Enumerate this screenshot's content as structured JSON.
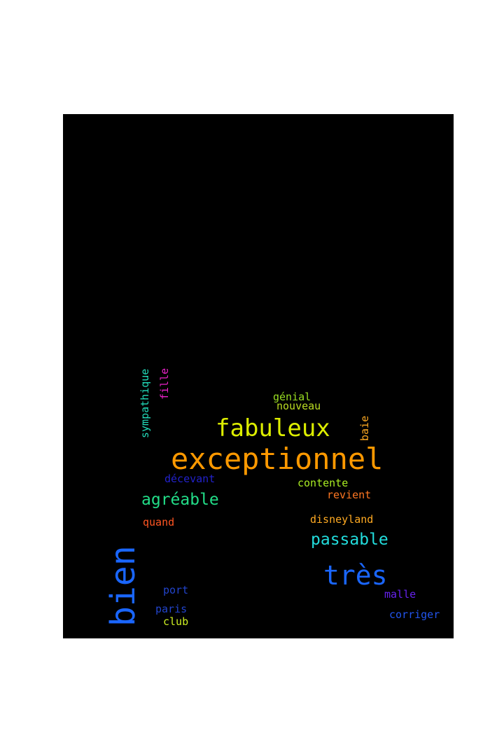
{
  "word_cloud": {
    "background_color": "#000000",
    "words": [
      {
        "text": "exceptionnel",
        "color": "#ff9900",
        "orientation": "horizontal"
      },
      {
        "text": "fabuleux",
        "color": "#ddee00",
        "orientation": "horizontal"
      },
      {
        "text": "bien",
        "color": "#1a66ff",
        "orientation": "vertical"
      },
      {
        "text": "très",
        "color": "#1a66ff",
        "orientation": "horizontal"
      },
      {
        "text": "agréable",
        "color": "#22dd88",
        "orientation": "horizontal"
      },
      {
        "text": "passable",
        "color": "#22dddd",
        "orientation": "horizontal"
      },
      {
        "text": "sympathique",
        "color": "#22ddbb",
        "orientation": "vertical"
      },
      {
        "text": "fille",
        "color": "#ee22cc",
        "orientation": "vertical"
      },
      {
        "text": "génial",
        "color": "#99dd22",
        "orientation": "horizontal"
      },
      {
        "text": "nouveau",
        "color": "#bbdd22",
        "orientation": "horizontal"
      },
      {
        "text": "baie",
        "color": "#ffaa22",
        "orientation": "vertical"
      },
      {
        "text": "décevant",
        "color": "#2222cc",
        "orientation": "horizontal"
      },
      {
        "text": "contente",
        "color": "#aaee22",
        "orientation": "horizontal"
      },
      {
        "text": "revient",
        "color": "#ff7722",
        "orientation": "horizontal"
      },
      {
        "text": "quand",
        "color": "#ff5522",
        "orientation": "horizontal"
      },
      {
        "text": "disneyland",
        "color": "#ffaa22",
        "orientation": "horizontal"
      },
      {
        "text": "port",
        "color": "#2244cc",
        "orientation": "horizontal"
      },
      {
        "text": "paris",
        "color": "#2244cc",
        "orientation": "horizontal"
      },
      {
        "text": "club",
        "color": "#ccee22",
        "orientation": "horizontal"
      },
      {
        "text": "malle",
        "color": "#6622ee",
        "orientation": "horizontal"
      },
      {
        "text": "corriger",
        "color": "#2255ee",
        "orientation": "horizontal"
      }
    ]
  }
}
